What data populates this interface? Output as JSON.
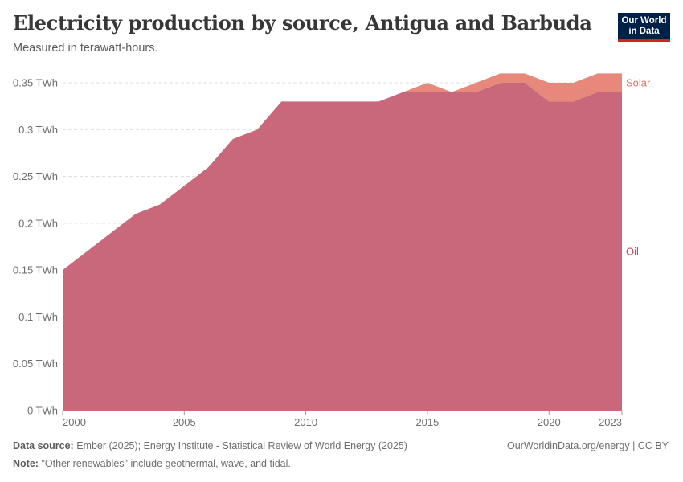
{
  "header": {
    "title": "Electricity production by source, Antigua and Barbuda",
    "subtitle": "Measured in terawatt-hours."
  },
  "logo": {
    "line1": "Our World",
    "line2": "in Data"
  },
  "footer": {
    "source_label": "Data source:",
    "source_text": "Ember (2025); Energy Institute - Statistical Review of World Energy (2025)",
    "credit": "OurWorldinData.org/energy | CC BY",
    "note_label": "Note:",
    "note_text": "\"Other renewables\" include geothermal, wave, and tidal."
  },
  "chart_data": {
    "type": "area",
    "stacked": true,
    "title": "Electricity production by source, Antigua and Barbuda",
    "subtitle": "Measured in terawatt-hours.",
    "unit": "TWh",
    "x": [
      2000,
      2001,
      2002,
      2003,
      2004,
      2005,
      2006,
      2007,
      2008,
      2009,
      2010,
      2011,
      2012,
      2013,
      2014,
      2015,
      2016,
      2017,
      2018,
      2019,
      2020,
      2021,
      2022,
      2023
    ],
    "series": [
      {
        "name": "Oil",
        "color": "#c9687a",
        "values": [
          0.15,
          0.17,
          0.19,
          0.21,
          0.22,
          0.24,
          0.26,
          0.29,
          0.3,
          0.33,
          0.33,
          0.33,
          0.33,
          0.33,
          0.34,
          0.34,
          0.34,
          0.34,
          0.35,
          0.35,
          0.33,
          0.33,
          0.34,
          0.34
        ]
      },
      {
        "name": "Solar",
        "color": "#e8887a",
        "values": [
          0,
          0,
          0,
          0,
          0,
          0,
          0,
          0,
          0,
          0,
          0,
          0,
          0,
          0,
          0,
          0.01,
          0,
          0.01,
          0.01,
          0.01,
          0.02,
          0.02,
          0.02,
          0.02
        ]
      }
    ],
    "xlim": [
      2000,
      2023
    ],
    "ylim": [
      0,
      0.35
    ],
    "x_ticks": [
      2000,
      2005,
      2010,
      2015,
      2020,
      2023
    ],
    "x_tick_labels": [
      "2000",
      "2005",
      "2010",
      "2015",
      "2020",
      "2023"
    ],
    "y_ticks": [
      0,
      0.05,
      0.1,
      0.15,
      0.2,
      0.25,
      0.3,
      0.35
    ],
    "y_tick_labels": [
      "0 TWh",
      "0.05 TWh",
      "0.1 TWh",
      "0.15 TWh",
      "0.2 TWh",
      "0.25 TWh",
      "0.3 TWh",
      "0.35 TWh"
    ],
    "grid": true,
    "legend": "right, inline labels"
  }
}
